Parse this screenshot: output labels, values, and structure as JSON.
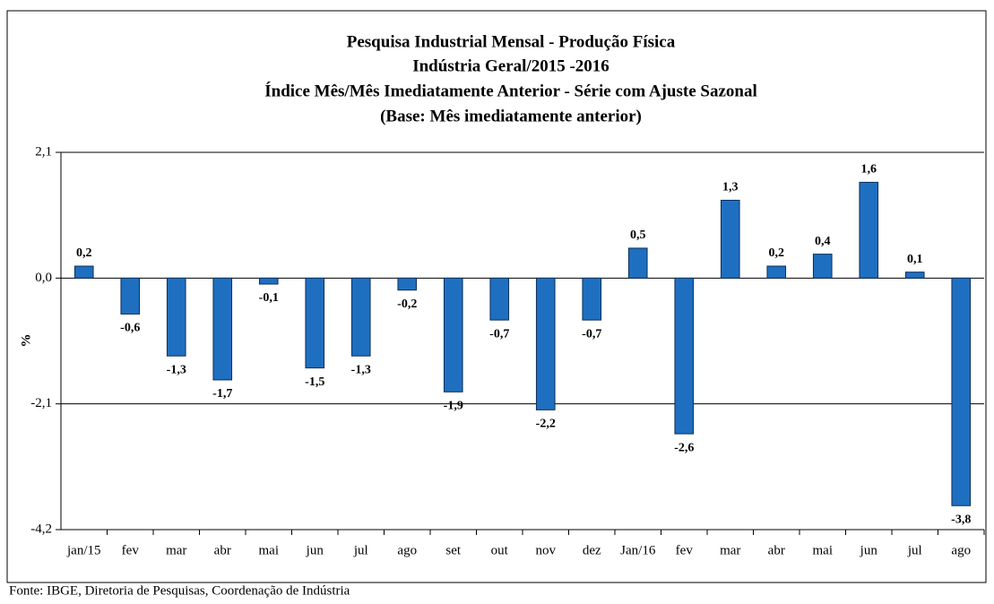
{
  "chart_data": {
    "type": "bar",
    "title": [
      "Pesquisa Industrial Mensal - Produção Física",
      "Indústria Geral/2015 -2016",
      "Índice Mês/Mês Imediatamente Anterior - Série com Ajuste Sazonal",
      "(Base: Mês imediatamente anterior)"
    ],
    "y_label": "%",
    "categories": [
      "jan/15",
      "fev",
      "mar",
      "abr",
      "mai",
      "jun",
      "jul",
      "ago",
      "set",
      "out",
      "nov",
      "dez",
      "Jan/16",
      "fev",
      "mar",
      "abr",
      "mai",
      "jun",
      "jul",
      "ago"
    ],
    "values": [
      0.2,
      -0.6,
      -1.3,
      -1.7,
      -0.1,
      -1.5,
      -1.3,
      -0.2,
      -1.9,
      -0.7,
      -2.2,
      -0.7,
      0.5,
      -2.6,
      1.3,
      0.2,
      0.4,
      1.6,
      0.1,
      -3.8
    ],
    "value_labels": [
      "0,2",
      "-0,6",
      "-1,3",
      "-1,7",
      "-0,1",
      "-1,5",
      "-1,3",
      "-0,2",
      "-1,9",
      "-0,7",
      "-2,2",
      "-0,7",
      "0,5",
      "-2,6",
      "1,3",
      "0,2",
      "0,4",
      "1,6",
      "0,1",
      "-3,8"
    ],
    "color": "#1f6fc0",
    "ylim": [
      -4.2,
      2.1
    ],
    "yticks": [
      {
        "value": -4.2,
        "label": "-4,2"
      },
      {
        "value": -2.1,
        "label": "-2,1"
      },
      {
        "value": 0,
        "label": "0,0"
      },
      {
        "value": 2.1,
        "label": "2,1"
      }
    ],
    "grid": true,
    "source": "Fonte: IBGE, Diretoria de Pesquisas, Coordenação de Indústria"
  }
}
